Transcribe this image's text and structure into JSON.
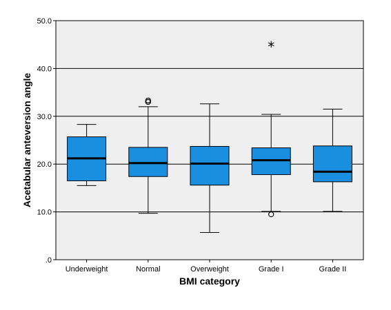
{
  "chart_data": {
    "type": "boxplot",
    "title": "",
    "xlabel": "BMI category",
    "ylabel": "Acetabular anteversion  angle",
    "ylim": [
      0,
      50
    ],
    "y_ticks": [
      0,
      10,
      20,
      30,
      40,
      50
    ],
    "y_tick_labels": [
      ".0",
      "10.0",
      "20.0",
      "30.0",
      "40.0",
      "50.0"
    ],
    "grid": "horizontal",
    "categories": [
      "Underweight",
      "Normal",
      "Overweight",
      "Grade I",
      "Grade II"
    ],
    "boxes": [
      {
        "category": "Underweight",
        "whisker_low": 15.5,
        "q1": 16.5,
        "median": 21.2,
        "q3": 25.7,
        "whisker_high": 28.3,
        "outliers": [],
        "extremes": []
      },
      {
        "category": "Normal",
        "whisker_low": 9.7,
        "q1": 17.4,
        "median": 20.2,
        "q3": 23.5,
        "whisker_high": 32.0,
        "outliers": [
          33.0,
          33.3
        ],
        "extremes": []
      },
      {
        "category": "Overweight",
        "whisker_low": 5.7,
        "q1": 15.6,
        "median": 20.1,
        "q3": 23.7,
        "whisker_high": 32.6,
        "outliers": [],
        "extremes": []
      },
      {
        "category": "Grade I",
        "whisker_low": 10.1,
        "q1": 17.8,
        "median": 20.8,
        "q3": 23.4,
        "whisker_high": 30.4,
        "outliers": [
          9.5
        ],
        "extremes": [
          44.7
        ]
      },
      {
        "category": "Grade II",
        "whisker_low": 10.1,
        "q1": 16.3,
        "median": 18.4,
        "q3": 23.8,
        "whisker_high": 31.5,
        "outliers": [],
        "extremes": []
      }
    ],
    "colors": {
      "box_fill": "#1a8fe0",
      "plot_background": "#efefef",
      "grid": "#000000",
      "border": "#000000"
    }
  }
}
